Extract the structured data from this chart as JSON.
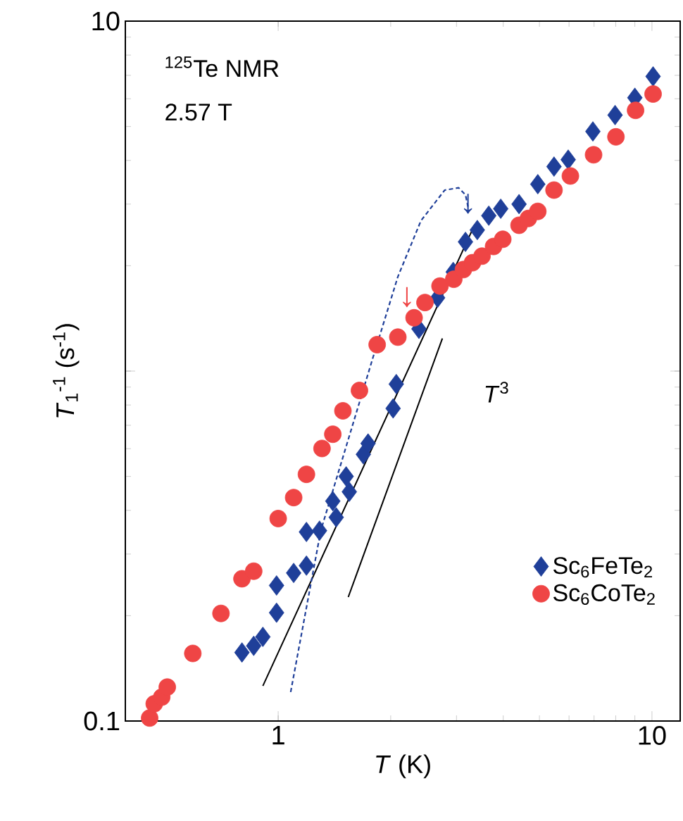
{
  "chart_data": {
    "type": "scatter",
    "xlabel": "*T* (K)",
    "ylabel": "*T*$_{1}$$^{-1}$ (s$^{-1}$)",
    "log": "xy",
    "xlim": [
      0.39,
      11.9
    ],
    "ylim": [
      0.1,
      10
    ],
    "xticks": [
      1,
      10
    ],
    "yticks": [
      0.1,
      {
        "value": 1,
        "label": null
      },
      10
    ],
    "legend": "bottom right",
    "annotations": [
      "$^{125}$Te NMR",
      "2.57 T",
      "*T*$^{3}$",
      {
        "text": "↓",
        "x": 3.22,
        "y": 2.81
      },
      {
        "text": "↓",
        "x": 2.21,
        "y": 1.52
      }
    ],
    "series": [
      {
        "name": "Sc$_{6}$FeTe$_{2}$",
        "color": "#1f3f99",
        "marker": "diamond",
        "x": [
          0.8,
          0.86,
          0.91,
          0.99,
          0.99,
          1.1,
          1.19,
          1.19,
          1.29,
          1.43,
          1.4,
          1.55,
          1.52,
          1.69,
          1.74,
          2.03,
          2.07,
          2.38,
          2.67,
          2.94,
          3.17,
          3.41,
          3.66,
          3.94,
          4.41,
          4.95,
          5.47,
          5.97,
          6.95,
          7.97,
          9.0,
          10.07
        ],
        "values": [
          0.157,
          0.164,
          0.174,
          0.204,
          0.244,
          0.265,
          0.278,
          0.347,
          0.35,
          0.382,
          0.425,
          0.452,
          0.5,
          0.578,
          0.621,
          0.782,
          0.918,
          1.32,
          1.62,
          1.92,
          2.34,
          2.53,
          2.78,
          2.91,
          3.0,
          3.42,
          3.84,
          4.02,
          4.84,
          5.39,
          6.04,
          6.95
        ]
      },
      {
        "name": "Sc$_{6}$CoTe$_{2}$",
        "color": "#ef4545",
        "marker": "circle",
        "x": [
          0.453,
          0.466,
          0.488,
          0.505,
          0.591,
          0.703,
          0.8,
          0.86,
          1.0,
          1.1,
          1.19,
          1.31,
          1.4,
          1.49,
          1.65,
          1.84,
          2.09,
          2.31,
          2.47,
          2.71,
          2.95,
          3.13,
          3.31,
          3.51,
          3.77,
          3.99,
          4.41,
          4.67,
          4.95,
          5.47,
          6.05,
          6.98,
          8.01,
          9.04,
          10.07
        ],
        "values": [
          0.102,
          0.112,
          0.117,
          0.125,
          0.156,
          0.203,
          0.255,
          0.268,
          0.379,
          0.435,
          0.507,
          0.601,
          0.66,
          0.77,
          0.88,
          1.19,
          1.25,
          1.42,
          1.57,
          1.75,
          1.83,
          1.95,
          2.04,
          2.13,
          2.27,
          2.38,
          2.61,
          2.73,
          2.86,
          3.29,
          3.61,
          4.15,
          4.67,
          5.56,
          6.19
        ]
      },
      {
        "type": "line",
        "color": "#000000",
        "line_style": "solid",
        "x": [
          0.91,
          3.35
        ],
        "values": [
          0.126,
          2.61
        ]
      },
      {
        "type": "line",
        "color": "#000000",
        "line_style": "solid",
        "x": [
          1.54,
          2.75
        ],
        "values": [
          0.226,
          1.24
        ]
      },
      {
        "type": "line",
        "color": "#1f3f99",
        "line_style": "dashed",
        "x": [
          1.08,
          1.3,
          1.81,
          1.86,
          2.09,
          2.41,
          2.79,
          3.04,
          3.17,
          3.22
        ],
        "values": [
          0.121,
          0.35,
          1.13,
          1.24,
          1.86,
          2.69,
          3.29,
          3.34,
          3.19,
          2.95
        ]
      }
    ]
  }
}
